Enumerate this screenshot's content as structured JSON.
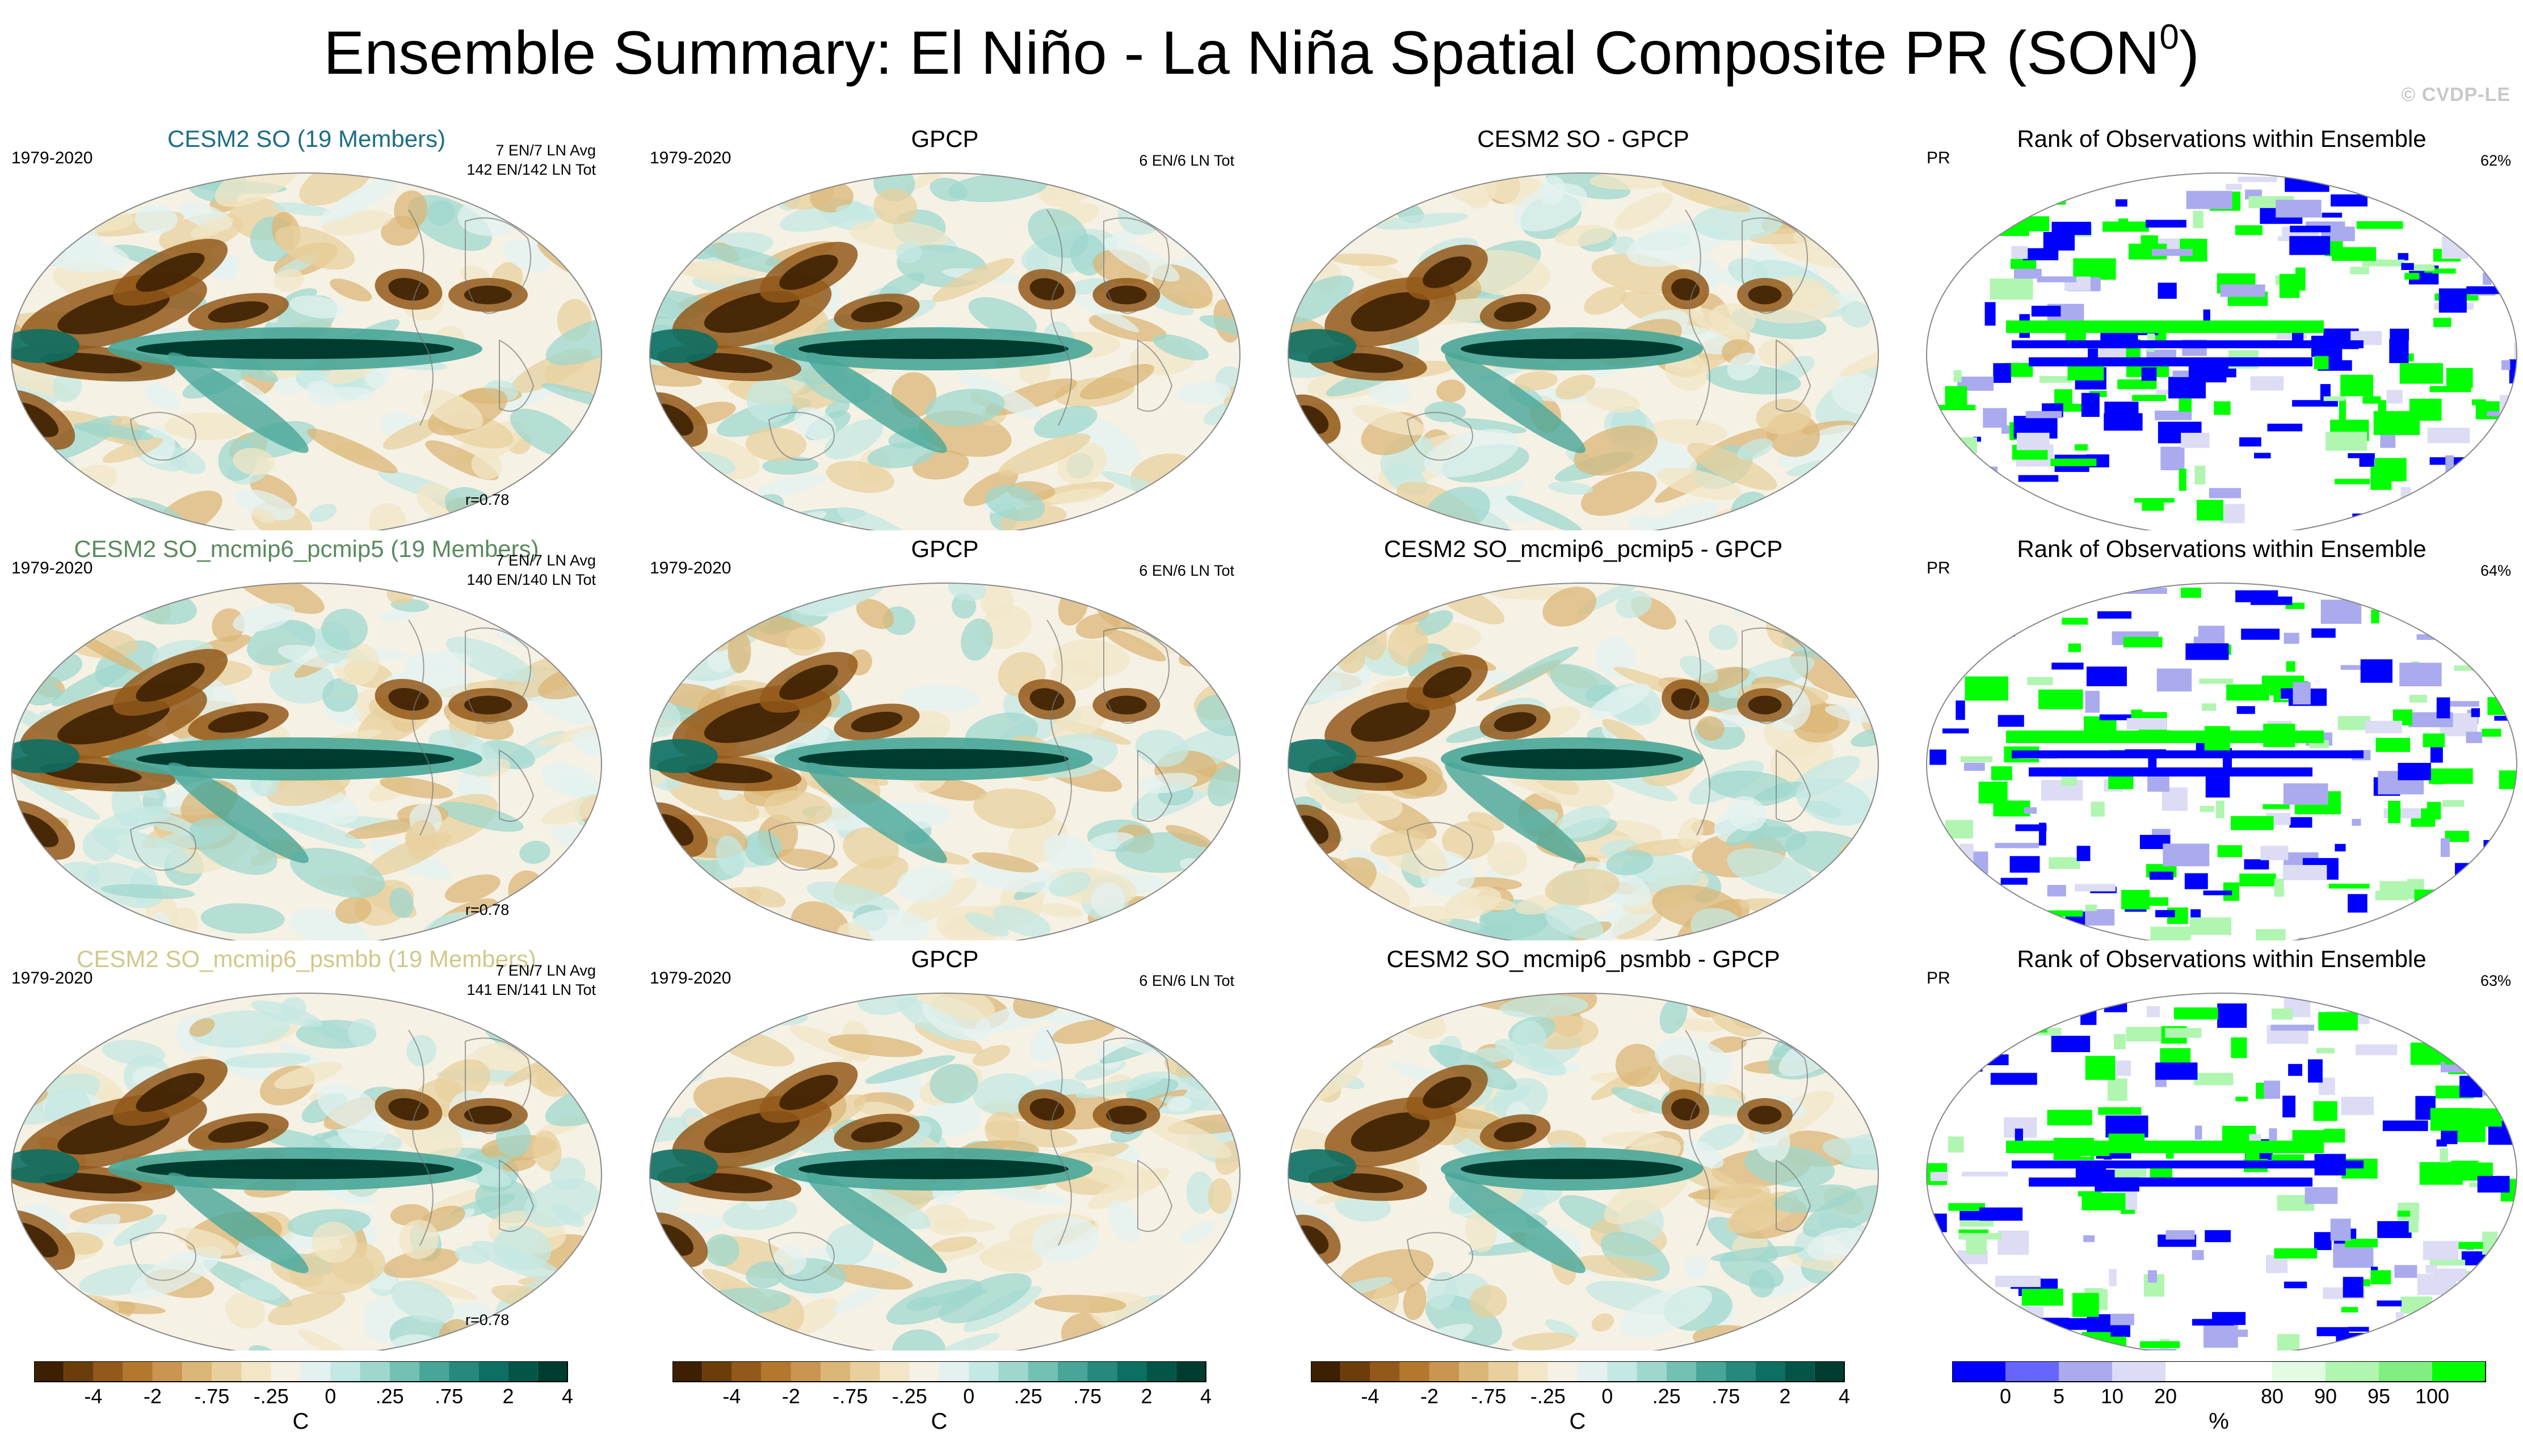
{
  "title": {
    "main": "Ensemble Summary: El Niño - La Niña Spatial Composite PR (SON",
    "superscript": "0",
    "close": ")"
  },
  "watermark": "© CVDP-LE",
  "colors": {
    "diverging": [
      "#3d2002",
      "#6b3d0a",
      "#93591a",
      "#b3772e",
      "#c99550",
      "#dbb676",
      "#e8d09e",
      "#f2e6c6",
      "#f6f1e5",
      "#e3f1f0",
      "#c4e8e3",
      "#9fd7cd",
      "#72c1b3",
      "#48a698",
      "#25897d",
      "#0d6f63",
      "#035548",
      "#003b30"
    ],
    "rank": [
      "#0000ff",
      "#6666ff",
      "#aaaaee",
      "#dcdcf5",
      "#ffffff",
      "#ffffff",
      "#e2fbe2",
      "#b0f5b0",
      "#80ee80",
      "#00ff00"
    ]
  },
  "rows": [
    {
      "model_title": "CESM2 SO (19 Members)",
      "model_title_color": "#1d6e86",
      "period": "1979-2020",
      "avg_text": "7 EN/7 LN Avg",
      "tot_text": "142 EN/142 LN Tot",
      "corr": "r=0.78",
      "obs_title": "GPCP",
      "obs_period": "1979-2020",
      "obs_tot": "6 EN/6 LN Tot",
      "diff_title": "CESM2 SO - GPCP",
      "rank_title": "Rank of Observations within Ensemble",
      "rank_var": "PR",
      "rank_pct": "62%"
    },
    {
      "model_title": "CESM2 SO_mcmip6_pcmip5 (19 Members)",
      "model_title_color": "#5a8a5e",
      "period": "1979-2020",
      "avg_text": "7 EN/7 LN Avg",
      "tot_text": "140 EN/140 LN Tot",
      "corr": "r=0.78",
      "obs_title": "GPCP",
      "obs_period": "1979-2020",
      "obs_tot": "6 EN/6 LN Tot",
      "diff_title": "CESM2 SO_mcmip6_pcmip5 - GPCP",
      "rank_title": "Rank of Observations within Ensemble",
      "rank_var": "PR",
      "rank_pct": "64%"
    },
    {
      "model_title": "CESM2 SO_mcmip6_psmbb (19 Members)",
      "model_title_color": "#d2c88a",
      "period": "1979-2020",
      "avg_text": "7 EN/7 LN Avg",
      "tot_text": "141 EN/141 LN Tot",
      "corr": "r=0.78",
      "obs_title": "GPCP",
      "obs_period": "1979-2020",
      "obs_tot": "6 EN/6 LN Tot",
      "diff_title": "CESM2 SO_mcmip6_psmbb - GPCP",
      "rank_title": "Rank of Observations within Ensemble",
      "rank_var": "PR",
      "rank_pct": "63%"
    }
  ],
  "colorbars": {
    "diverging": {
      "labels": [
        "-4",
        "-2",
        "-.75",
        "-.25",
        "0",
        ".25",
        ".75",
        "2",
        "4"
      ],
      "unit": "C"
    },
    "rank": {
      "labels": [
        "0",
        "5",
        "10",
        "20",
        "80",
        "90",
        "95",
        "100"
      ],
      "unit": "%"
    }
  },
  "chart_data": {
    "type": "heatmap",
    "title": "Ensemble Summary: El Niño - La Niña Spatial Composite PR (SON0)",
    "projection": "Robinson, global",
    "variable": "PR",
    "season": "SON",
    "columns": [
      "Ensemble mean",
      "GPCP observations",
      "Ensemble minus GPCP",
      "Rank of Observations within Ensemble"
    ],
    "rows": [
      {
        "ensemble": "CESM2 SO",
        "members": 19,
        "period": "1979-2020",
        "model_events": "7 EN/7 LN Avg; 142 EN/142 LN Tot",
        "obs_events": "6 EN/6 LN Tot",
        "pattern_correlation": 0.78,
        "rank_percent": 62
      },
      {
        "ensemble": "CESM2 SO_mcmip6_pcmip5",
        "members": 19,
        "period": "1979-2020",
        "model_events": "7 EN/7 LN Avg; 140 EN/140 LN Tot",
        "obs_events": "6 EN/6 LN Tot",
        "pattern_correlation": 0.78,
        "rank_percent": 64
      },
      {
        "ensemble": "CESM2 SO_mcmip6_psmbb",
        "members": 19,
        "period": "1979-2020",
        "model_events": "7 EN/7 LN Avg; 141 EN/141 LN Tot",
        "obs_events": "6 EN/6 LN Tot",
        "pattern_correlation": 0.78,
        "rank_percent": 63
      }
    ],
    "diverging_levels": [
      -4,
      -2,
      -0.75,
      -0.25,
      0,
      0.25,
      0.75,
      2,
      4
    ],
    "diverging_unit": "C",
    "rank_levels": [
      0,
      5,
      10,
      20,
      80,
      90,
      95,
      100
    ],
    "rank_unit": "%"
  }
}
